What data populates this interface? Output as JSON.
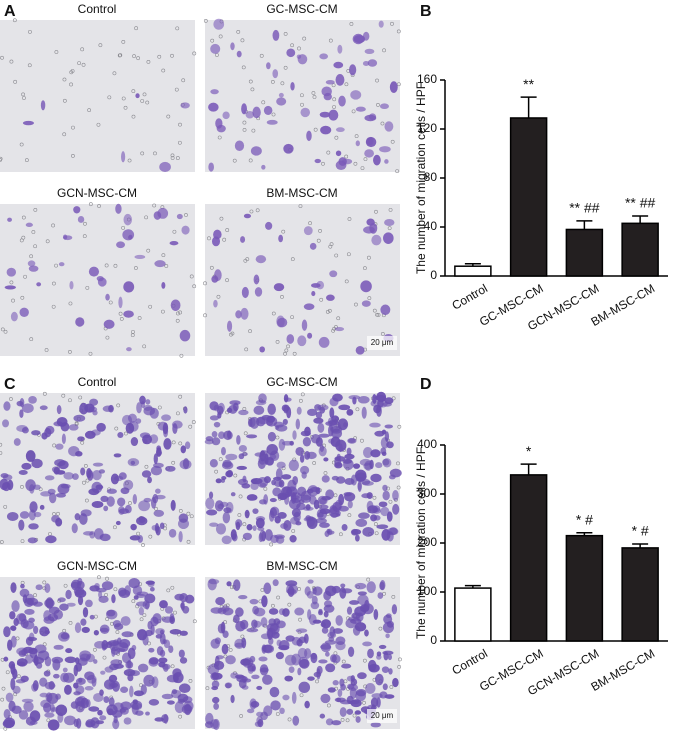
{
  "panels": [
    {
      "label": "A",
      "captions": [
        "Control",
        "GC-MSC-CM",
        "GCN-MSC-CM",
        "BM-MSC-CM"
      ],
      "scale_bar": "20 μm"
    },
    {
      "label": "C",
      "captions": [
        "Control",
        "GC-MSC-CM",
        "GCN-MSC-CM",
        "BM-MSC-CM"
      ],
      "scale_bar": "20 μm"
    }
  ],
  "chart_data": [
    {
      "type": "bar",
      "label": "B",
      "y_label": "The number of migration cells / HPF",
      "categories": [
        "Control",
        "GC-MSC-CM",
        "GCN-MSC-CM",
        "BM-MSC-CM"
      ],
      "values": [
        8,
        129,
        38,
        43
      ],
      "errors": [
        2,
        17,
        7,
        6
      ],
      "annotations": [
        null,
        "**",
        "** ##",
        "** ##"
      ],
      "colors": [
        "#ffffff",
        "#231f20",
        "#231f20",
        "#231f20"
      ],
      "ylim": [
        0,
        160
      ],
      "yticks": [
        0,
        40,
        80,
        120,
        160
      ]
    },
    {
      "type": "bar",
      "label": "D",
      "y_label": "The number of migration cells / HPF",
      "categories": [
        "Control",
        "GC-MSC-CM",
        "GCN-MSC-CM",
        "BM-MSC-CM"
      ],
      "values": [
        108,
        339,
        215,
        190
      ],
      "errors": [
        5,
        22,
        6,
        8
      ],
      "annotations": [
        null,
        "*",
        "* #",
        "* #"
      ],
      "colors": [
        "#ffffff",
        "#231f20",
        "#231f20",
        "#231f20"
      ],
      "ylim": [
        0,
        400
      ],
      "yticks": [
        0,
        100,
        200,
        300,
        400
      ]
    }
  ]
}
